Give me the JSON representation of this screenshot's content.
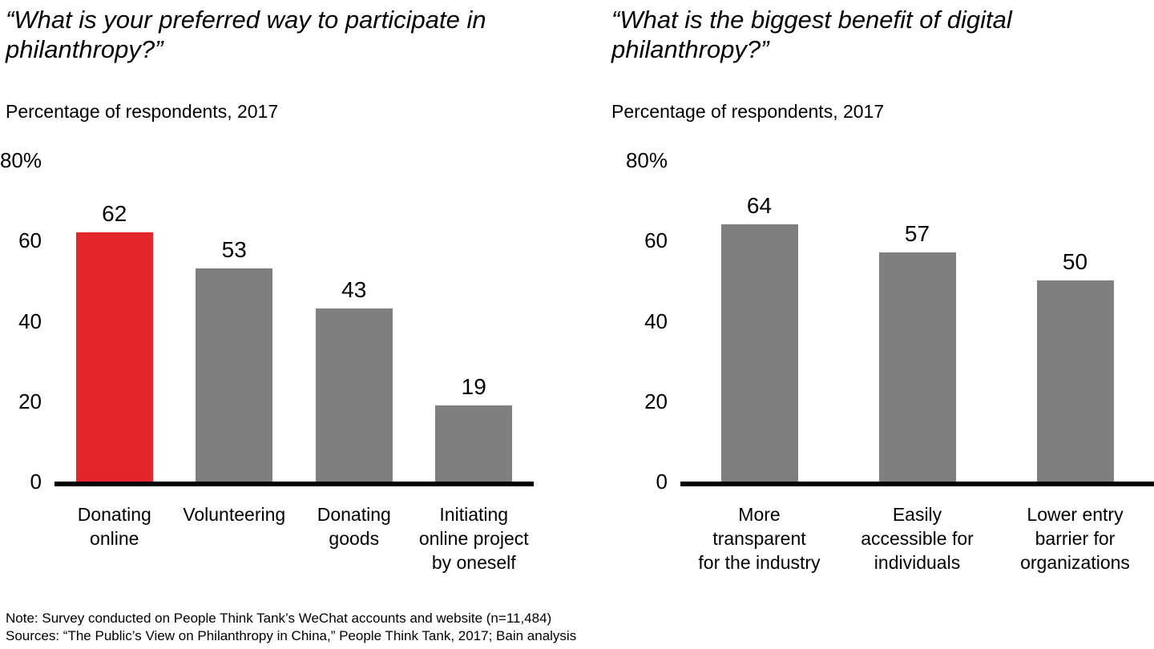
{
  "colors": {
    "background": "#ffffff",
    "highlight_red": "#e2262a",
    "bar_gray": "#7f7f7f",
    "axis": "#000000",
    "text": "#000000"
  },
  "chart_data": [
    {
      "type": "bar",
      "title": "“What is your preferred way to participate in\nphilanthropy?”",
      "subtitle": "Percentage of respondents, 2017",
      "categories": [
        "Donating\nonline",
        "Volunteering",
        "Donating\ngoods",
        "Initiating\nonline project\nby oneself"
      ],
      "values": [
        62,
        53,
        43,
        19
      ],
      "bar_colors": [
        "#e2262a",
        "#7f7f7f",
        "#7f7f7f",
        "#7f7f7f"
      ],
      "ylim": [
        0,
        80
      ],
      "yticks": [
        0,
        20,
        40,
        60
      ],
      "ytop_label": "80%",
      "xlabel": "",
      "ylabel": "",
      "grid": false,
      "legend": false
    },
    {
      "type": "bar",
      "title": "“What is the biggest benefit of digital\nphilanthropy?”",
      "subtitle": "Percentage of respondents, 2017",
      "categories": [
        "More\ntransparent\nfor the industry",
        "Easily\naccessible for\nindividuals",
        "Lower entry\nbarrier for\norganizations"
      ],
      "values": [
        64,
        57,
        50
      ],
      "bar_colors": [
        "#7f7f7f",
        "#7f7f7f",
        "#7f7f7f"
      ],
      "ylim": [
        0,
        80
      ],
      "yticks": [
        0,
        20,
        40,
        60
      ],
      "ytop_label": "80%",
      "xlabel": "",
      "ylabel": "",
      "grid": false,
      "legend": false
    }
  ],
  "footer": {
    "note": "Note: Survey conducted on People Think Tank’s WeChat accounts and website (n=11,484)",
    "sources": "Sources: “The Public’s View on Philanthropy in China,” People Think Tank, 2017; Bain analysis"
  }
}
